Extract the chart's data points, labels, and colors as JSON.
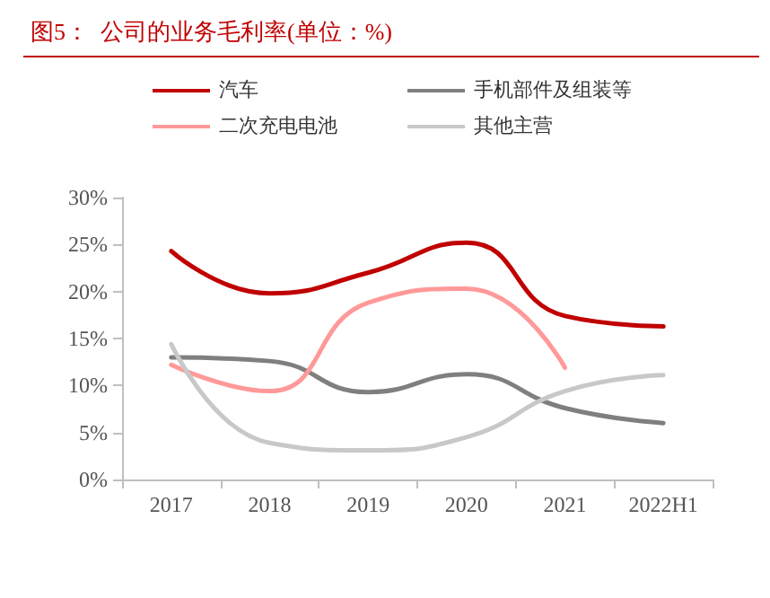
{
  "chart_data": {
    "type": "line",
    "title": "图5：  公司的业务毛利率(单位：%)",
    "categories": [
      "2017",
      "2018",
      "2019",
      "2020",
      "2021",
      "2022H1"
    ],
    "series": [
      {
        "name": "汽车",
        "color": "#c00000",
        "values": [
          24.3,
          19.8,
          22.0,
          25.2,
          17.4,
          16.3
        ]
      },
      {
        "name": "手机部件及组装等",
        "color": "#7f7f7f",
        "values": [
          13.0,
          12.6,
          9.3,
          11.2,
          7.6,
          6.0
        ]
      },
      {
        "name": "二次充电电池",
        "color": "#ff9999",
        "values": [
          12.2,
          9.4,
          18.8,
          20.3,
          11.9,
          null
        ]
      },
      {
        "name": "其他主营",
        "color": "#c8c8c8",
        "values": [
          14.4,
          3.9,
          3.1,
          4.5,
          9.4,
          11.1
        ]
      }
    ],
    "ylim": [
      0,
      30
    ],
    "yticks": [
      {
        "value": 0,
        "label": "0%"
      },
      {
        "value": 5,
        "label": "5%"
      },
      {
        "value": 10,
        "label": "10%"
      },
      {
        "value": 15,
        "label": "15%"
      },
      {
        "value": 20,
        "label": "20%"
      },
      {
        "value": 25,
        "label": "25%"
      },
      {
        "value": 30,
        "label": "30%"
      }
    ],
    "grid": false,
    "legend": "top",
    "marker": "none",
    "line_style": "solid"
  }
}
